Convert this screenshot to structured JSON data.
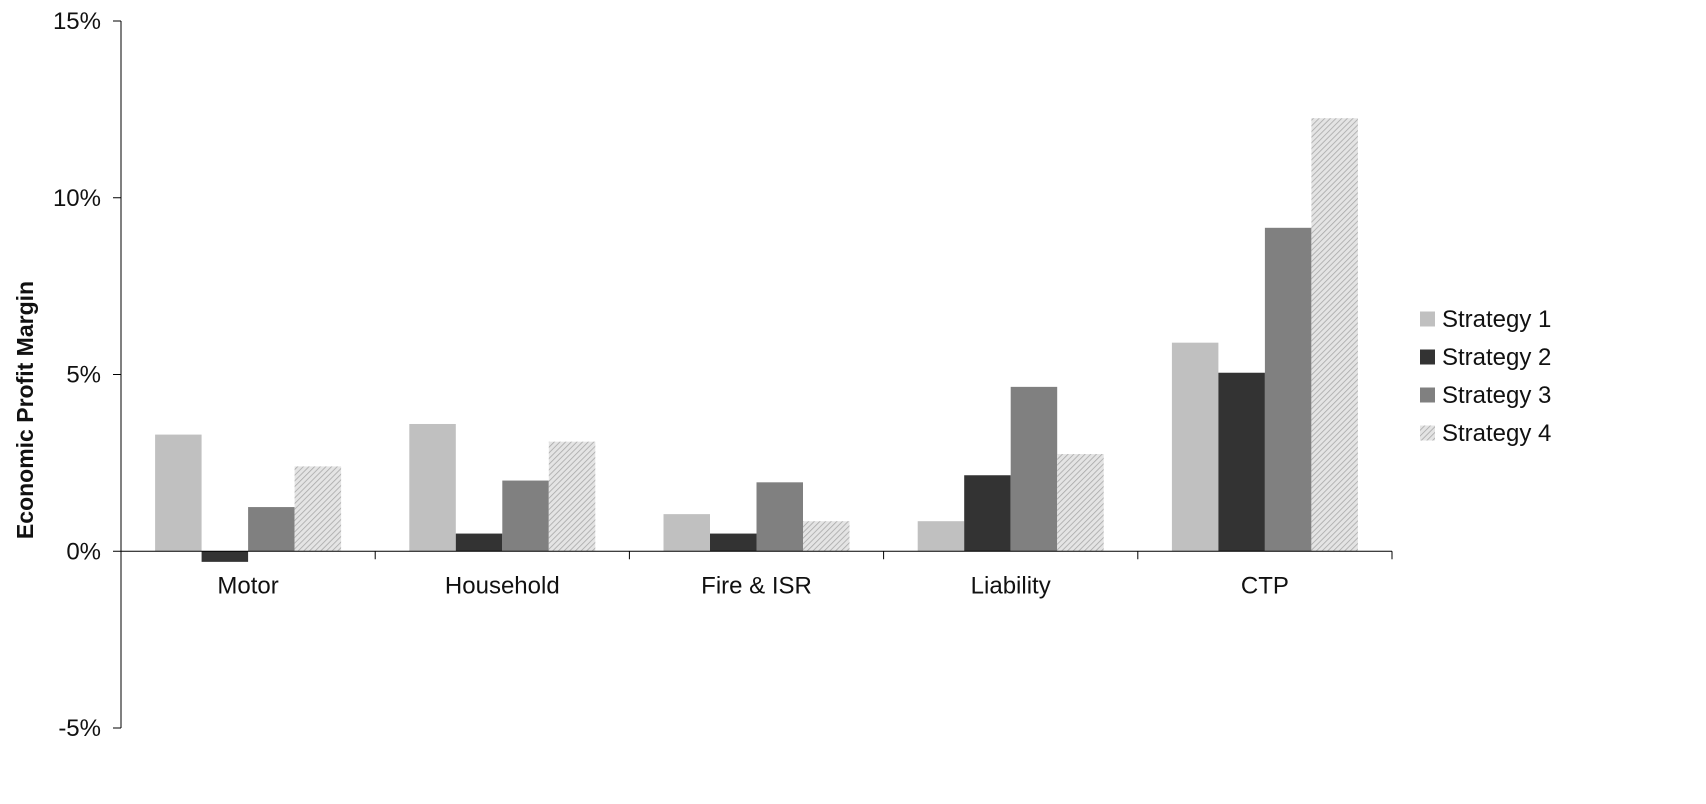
{
  "chart_data": {
    "type": "bar",
    "title": "",
    "xlabel": "",
    "ylabel": "Economic Profit Margin",
    "y_unit": "%",
    "ylim": [
      -5,
      15
    ],
    "y_ticks": [
      15,
      10,
      5,
      0,
      -5
    ],
    "y_tick_labels": [
      "15%",
      "10%",
      "5%",
      "0%",
      "-5%"
    ],
    "grid": false,
    "legend_position": "right",
    "categories": [
      "Motor",
      "Household",
      "Fire & ISR",
      "Liability",
      "CTP"
    ],
    "series": [
      {
        "name": "Strategy 1",
        "color": "#c0c0c0",
        "pattern": "solid",
        "values": [
          3.3,
          3.6,
          1.05,
          0.85,
          5.9
        ]
      },
      {
        "name": "Strategy 2",
        "color": "#333333",
        "pattern": "solid",
        "values": [
          -0.3,
          0.5,
          0.5,
          2.15,
          5.05
        ]
      },
      {
        "name": "Strategy 3",
        "color": "#808080",
        "pattern": "solid",
        "values": [
          1.25,
          2.0,
          1.95,
          4.65,
          9.15
        ]
      },
      {
        "name": "Strategy 4",
        "color": "#cfcfcf",
        "pattern": "hatched",
        "values": [
          2.4,
          3.1,
          0.85,
          2.75,
          12.25
        ]
      }
    ]
  }
}
